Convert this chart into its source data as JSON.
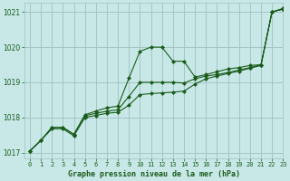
{
  "title": "Graphe pression niveau de la mer (hPa)",
  "background_color": "#c8e8e8",
  "plot_bg_color": "#c8e8e8",
  "grid_color": "#a0c0c0",
  "line_color": "#1a5c1a",
  "xlim": [
    -0.5,
    23
  ],
  "ylim": [
    1016.85,
    1021.25
  ],
  "yticks": [
    1017,
    1018,
    1019,
    1020,
    1021
  ],
  "xticks": [
    0,
    1,
    2,
    3,
    4,
    5,
    6,
    7,
    8,
    9,
    10,
    11,
    12,
    13,
    14,
    15,
    16,
    17,
    18,
    19,
    20,
    21,
    22,
    23
  ],
  "series": [
    {
      "x": [
        0,
        1,
        2,
        3,
        4,
        5,
        6,
        7,
        8,
        9,
        10,
        11,
        12,
        13,
        14,
        15,
        16,
        17,
        18,
        19,
        20,
        21,
        22,
        23
      ],
      "y": [
        1017.05,
        1017.35,
        1017.72,
        1017.72,
        1017.52,
        1018.08,
        1018.18,
        1018.28,
        1018.32,
        1019.12,
        1019.88,
        1020.0,
        1020.0,
        1019.6,
        1019.6,
        1019.15,
        1019.22,
        1019.3,
        1019.38,
        1019.42,
        1019.48,
        1019.5,
        1021.0,
        1021.1
      ]
    },
    {
      "x": [
        0,
        1,
        2,
        3,
        4,
        5,
        6,
        7,
        8,
        9,
        10,
        11,
        12,
        13,
        14,
        15,
        16,
        17,
        18,
        19,
        20,
        21,
        22,
        23
      ],
      "y": [
        1017.05,
        1017.35,
        1017.72,
        1017.72,
        1017.52,
        1018.05,
        1018.12,
        1018.18,
        1018.22,
        1018.6,
        1019.0,
        1019.0,
        1019.0,
        1019.0,
        1018.98,
        1019.1,
        1019.18,
        1019.22,
        1019.28,
        1019.35,
        1019.42,
        1019.5,
        1021.0,
        1021.08
      ]
    },
    {
      "x": [
        0,
        1,
        2,
        3,
        4,
        5,
        6,
        7,
        8,
        9,
        10,
        11,
        12,
        13,
        14,
        15,
        16,
        17,
        18,
        19,
        20,
        21,
        22,
        23
      ],
      "y": [
        1017.05,
        1017.35,
        1017.68,
        1017.68,
        1017.48,
        1018.0,
        1018.06,
        1018.12,
        1018.15,
        1018.35,
        1018.65,
        1018.68,
        1018.7,
        1018.72,
        1018.75,
        1018.95,
        1019.1,
        1019.18,
        1019.25,
        1019.32,
        1019.4,
        1019.48,
        1021.0,
        1021.08
      ]
    }
  ]
}
